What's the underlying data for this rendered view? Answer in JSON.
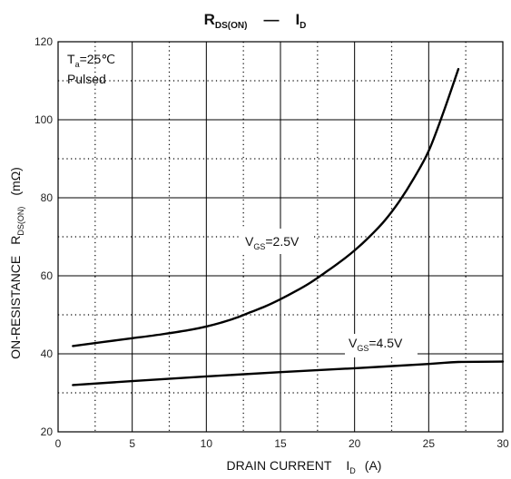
{
  "chart_data": {
    "type": "line",
    "title": {
      "main": "R",
      "sub": "DS(ON)",
      "sep": "—",
      "right_main": "I",
      "right_sub": "D"
    },
    "xlabel": {
      "main": "DRAIN CURRENT",
      "var": "I",
      "sub": "D",
      "unit": "(A)"
    },
    "ylabel": {
      "main": "ON-RESISTANCE",
      "var": "R",
      "sub": "DS(ON)",
      "unit": "(mΩ)"
    },
    "xlim": [
      0,
      30
    ],
    "ylim": [
      20,
      120
    ],
    "x_ticks": [
      0,
      5,
      10,
      15,
      20,
      25,
      30
    ],
    "y_ticks": [
      20,
      40,
      60,
      80,
      100,
      120
    ],
    "x_dotted_grid": [
      2.5,
      7.5,
      12.5,
      17.5,
      22.5,
      27.5
    ],
    "y_dotted_grid": [
      30,
      50,
      70,
      90,
      110
    ],
    "grid": true,
    "conditions": {
      "t_main": "T",
      "t_sub": "a",
      "t_value": "=25℃",
      "mode": "Pulsed"
    },
    "series": [
      {
        "name": {
          "main": "V",
          "sub": "GS",
          "value": "=2.5V"
        },
        "x": [
          1,
          3,
          5,
          7,
          9,
          10,
          11,
          12,
          13,
          14,
          15,
          16,
          17,
          18,
          19,
          20,
          21,
          22,
          23,
          24,
          25,
          26,
          27
        ],
        "values": [
          42,
          43,
          44,
          45,
          46.2,
          47,
          48,
          49.2,
          50.7,
          52.2,
          54,
          56,
          58.2,
          60.8,
          63.5,
          66.5,
          70,
          74,
          79,
          85,
          92,
          102,
          113
        ]
      },
      {
        "name": {
          "main": "V",
          "sub": "GS",
          "value": "=4.5V"
        },
        "x": [
          1,
          5,
          10,
          15,
          20,
          25,
          27,
          30
        ],
        "values": [
          32,
          33,
          34.2,
          35.3,
          36.3,
          37.4,
          37.9,
          38
        ]
      }
    ]
  }
}
